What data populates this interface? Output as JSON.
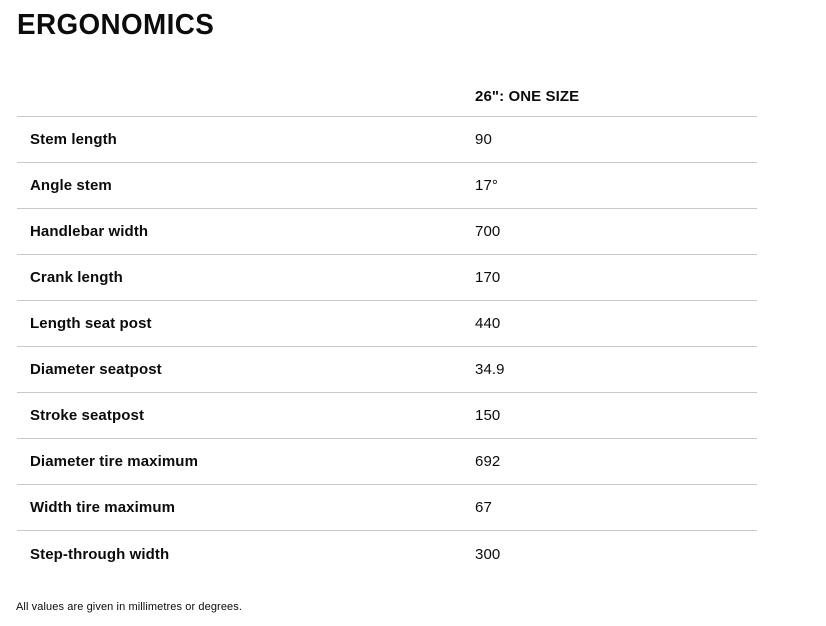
{
  "title": "ERGONOMICS",
  "table": {
    "column_header": "26\": ONE SIZE",
    "rows": [
      {
        "label": "Stem length",
        "value": "90"
      },
      {
        "label": "Angle stem",
        "value": "17°"
      },
      {
        "label": "Handlebar width",
        "value": "700"
      },
      {
        "label": "Crank length",
        "value": "170"
      },
      {
        "label": "Length seat post",
        "value": "440"
      },
      {
        "label": "Diameter seatpost",
        "value": "34.9"
      },
      {
        "label": "Stroke seatpost",
        "value": "150"
      },
      {
        "label": "Diameter tire maximum",
        "value": "692"
      },
      {
        "label": "Width tire maximum",
        "value": "67"
      },
      {
        "label": "Step-through width",
        "value": "300"
      }
    ]
  },
  "footnote": "All values are given in millimetres or degrees.",
  "colors": {
    "text": "#0c0c0c",
    "divider": "#c9c9c9",
    "background": "#ffffff"
  }
}
